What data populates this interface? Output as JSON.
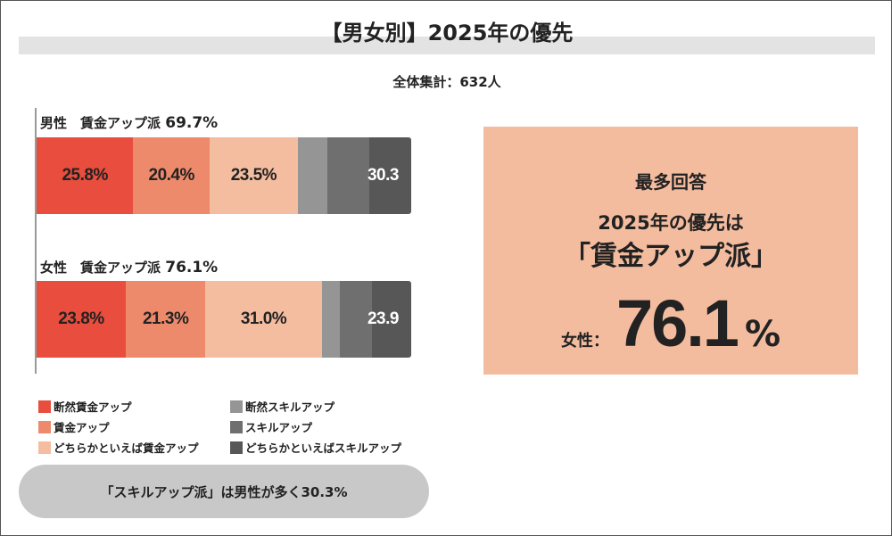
{
  "title": "【男女別】2025年の優先",
  "total": "全体集計：632人",
  "chart_data": {
    "type": "bar",
    "orientation": "horizontal-stacked-100",
    "categories": [
      "男性",
      "女性"
    ],
    "group_labels": [
      {
        "prefix": "男性　賃金アップ派 ",
        "value": "69.7%"
      },
      {
        "prefix": "女性　賃金アップ派 ",
        "value": "76.1%"
      }
    ],
    "series": [
      {
        "name": "断然賃金アップ",
        "color": "#e84d3d",
        "values": [
          25.8,
          23.8
        ],
        "labels": [
          "25.8%",
          "23.8%"
        ]
      },
      {
        "name": "賃金アップ",
        "color": "#ee8a6c",
        "values": [
          20.4,
          21.3
        ],
        "labels": [
          "20.4%",
          "21.3%"
        ]
      },
      {
        "name": "どちらかといえば賃金アップ",
        "color": "#f4bda0",
        "values": [
          23.5,
          31.0
        ],
        "labels": [
          "23.5%",
          "31.0%"
        ]
      },
      {
        "name": "断然スキルアップ",
        "color": "#959595",
        "values": [
          7.9,
          4.9
        ],
        "labels": [
          "",
          ""
        ]
      },
      {
        "name": "スキルアップ",
        "color": "#6f6f6f",
        "values": [
          11.1,
          8.6
        ],
        "labels": [
          "",
          ""
        ]
      },
      {
        "name": "どちらかといえばスキルアップ",
        "color": "#575757",
        "values": [
          11.3,
          10.4
        ],
        "labels": [
          "30.3",
          "23.9"
        ]
      }
    ],
    "legend": "bottom"
  },
  "note": "「スキルアップ派」は男性が多く30.3%",
  "callout": {
    "heading": "最多回答",
    "line1": "2025年の優先は",
    "line2": "「賃金アップ派」",
    "sub": "女性：",
    "value": "76.1",
    "unit": "%"
  }
}
